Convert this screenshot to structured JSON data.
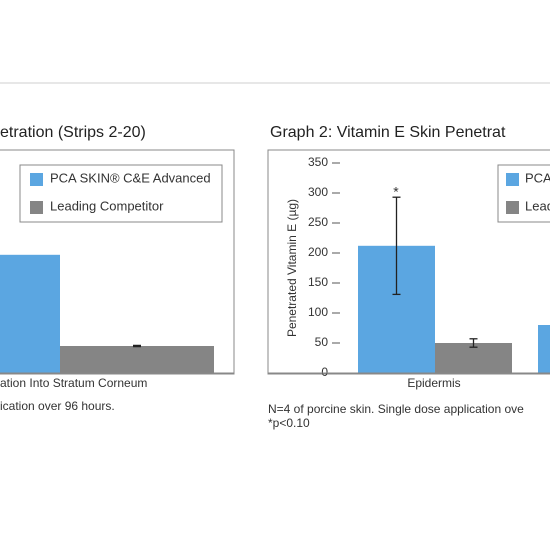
{
  "chart_data": [
    {
      "type": "bar",
      "title": "etration (Strips 2-20)",
      "categories": [
        "ation Into Stratum Corneum"
      ],
      "series": [
        {
          "name": "PCA SKIN® C&E Advanced",
          "color": "#5ba6e1",
          "values": [
            197
          ],
          "errors": [
            null
          ]
        },
        {
          "name": "Leading Competitor",
          "color": "#858585",
          "values": [
            45
          ],
          "errors": [
            1
          ]
        }
      ],
      "ylim": [
        0,
        350
      ],
      "notes": [
        "ication over 96 hours."
      ]
    },
    {
      "type": "bar",
      "title": "Graph 2: Vitamin E Skin Penetrat",
      "y_label": "Penetrated Vitamin E (µg)",
      "categories": [
        "Epidermis",
        null
      ],
      "series": [
        {
          "name": "PCA",
          "color": "#5ba6e1",
          "values": [
            212,
            80
          ],
          "errors": [
            81,
            null
          ]
        },
        {
          "name": "Lead",
          "color": "#858585",
          "values": [
            50,
            null
          ],
          "errors": [
            7,
            null
          ]
        }
      ],
      "ylim": [
        0,
        350
      ],
      "yticks": [
        0,
        50,
        100,
        150,
        200,
        250,
        300,
        350
      ],
      "annotation": "*",
      "notes": [
        "N=4 of porcine skin. Single dose application ove",
        "*p<0.10"
      ]
    }
  ]
}
